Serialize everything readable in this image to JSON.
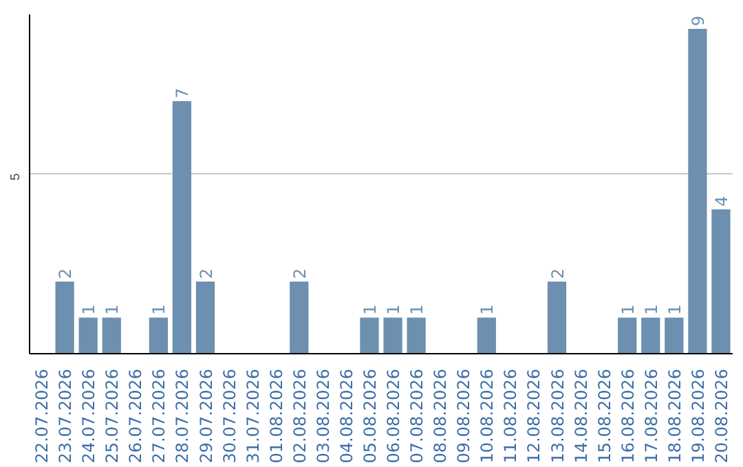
{
  "chart_data": {
    "type": "bar",
    "categories": [
      "22.07.2026",
      "23.07.2026",
      "24.07.2026",
      "25.07.2026",
      "26.07.2026",
      "27.07.2026",
      "28.07.2026",
      "29.07.2026",
      "30.07.2026",
      "31.07.2026",
      "01.08.2026",
      "02.08.2026",
      "03.08.2026",
      "04.08.2026",
      "05.08.2026",
      "06.08.2026",
      "07.08.2026",
      "08.08.2026",
      "09.08.2026",
      "10.08.2026",
      "11.08.2026",
      "12.08.2026",
      "13.08.2026",
      "14.08.2026",
      "15.08.2026",
      "16.08.2026",
      "17.08.2026",
      "18.08.2026",
      "19.08.2026",
      "20.08.2026"
    ],
    "values": [
      0,
      2,
      1,
      1,
      0,
      1,
      7,
      2,
      0,
      0,
      0,
      2,
      0,
      0,
      1,
      1,
      1,
      0,
      0,
      1,
      0,
      0,
      2,
      0,
      0,
      1,
      1,
      1,
      9,
      4
    ],
    "value_labels": [
      null,
      "2",
      "1",
      "1",
      null,
      "1",
      "7",
      "2",
      null,
      null,
      null,
      "2",
      null,
      null,
      "1",
      "1",
      "1",
      null,
      null,
      "1",
      null,
      null,
      "2",
      null,
      null,
      "1",
      "1",
      "1",
      "9",
      "4"
    ],
    "color": "#6d8fb0",
    "ylim": [
      0,
      9.4
    ],
    "yticks": [
      5
    ],
    "grid": "y"
  }
}
